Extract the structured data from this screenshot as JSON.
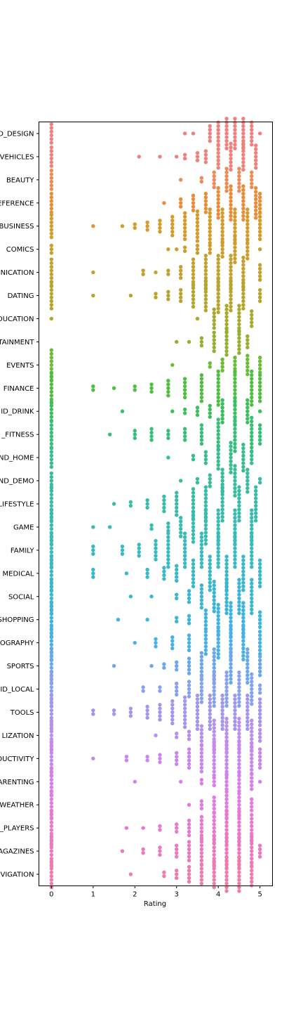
{
  "chart_data": {
    "type": "swarm",
    "orientation": "horizontal",
    "xlabel": "Rating",
    "ylabel": "",
    "xlim": [
      -0.3,
      5.3
    ],
    "xticks": [
      0,
      1,
      2,
      3,
      4,
      5
    ],
    "grid": false,
    "legend": "none",
    "categories": [
      {
        "label": "D_DESIGN",
        "color": "#f08080"
      },
      {
        "label": "VEHICLES",
        "color": "#f0807a"
      },
      {
        "label": "BEAUTY",
        "color": "#ef8a55"
      },
      {
        "label": "EFERENCE",
        "color": "#ea8c36"
      },
      {
        "label": "BUSINESS",
        "color": "#d69a2b"
      },
      {
        "label": "COMICS",
        "color": "#cc9e2c"
      },
      {
        "label": "NICATION",
        "color": "#c3a12d"
      },
      {
        "label": "DATING",
        "color": "#b8a42d"
      },
      {
        "label": "DUCATION",
        "color": "#a7aa2f"
      },
      {
        "label": "TAINMENT",
        "color": "#95b02f"
      },
      {
        "label": "EVENTS",
        "color": "#6bbd36"
      },
      {
        "label": "FINANCE",
        "color": "#4fbf42"
      },
      {
        "label": "ID_DRINK",
        "color": "#3bbf5e"
      },
      {
        "label": "_FITNESS",
        "color": "#39be78"
      },
      {
        "label": "ND_HOME",
        "color": "#38bd8d"
      },
      {
        "label": "ND_DEMO",
        "color": "#37bd9c"
      },
      {
        "label": "LIFESTYLE",
        "color": "#37bca7"
      },
      {
        "label": "GAME",
        "color": "#37bbb3"
      },
      {
        "label": "FAMILY",
        "color": "#38babf"
      },
      {
        "label": "MEDICAL",
        "color": "#39b8c9"
      },
      {
        "label": "SOCIAL",
        "color": "#3ab6d3"
      },
      {
        "label": "SHOPPING",
        "color": "#3db3df"
      },
      {
        "label": "OGRAPHY",
        "color": "#4ab0e8"
      },
      {
        "label": "SPORTS",
        "color": "#6aa8ec"
      },
      {
        "label": "ID_LOCAL",
        "color": "#86a2ee"
      },
      {
        "label": "TOOLS",
        "color": "#a396ee"
      },
      {
        "label": "LIZATION",
        "color": "#b790ee"
      },
      {
        "label": "DUCTIVITY",
        "color": "#c886ee"
      },
      {
        "label": "ARENTING",
        "color": "#d87eec"
      },
      {
        "label": "WEATHER",
        "color": "#e17ae1"
      },
      {
        "label": "_PLAYERS",
        "color": "#e878d0"
      },
      {
        "label": "AGAZINES",
        "color": "#ec78bf"
      },
      {
        "label": "VIGATION",
        "color": "#ef7aac"
      }
    ],
    "points": [
      [
        [
          0,
          6
        ],
        [
          3.2,
          1
        ],
        [
          3.4,
          1
        ],
        [
          3.8,
          5
        ],
        [
          4.0,
          7
        ],
        [
          4.2,
          9
        ],
        [
          4.4,
          9
        ],
        [
          4.6,
          9
        ],
        [
          4.8,
          7
        ],
        [
          5.0,
          1
        ]
      ],
      [
        [
          0,
          6
        ],
        [
          2.1,
          1
        ],
        [
          2.6,
          1
        ],
        [
          3.0,
          1
        ],
        [
          3.2,
          2
        ],
        [
          3.5,
          3
        ],
        [
          3.7,
          4
        ],
        [
          4.0,
          7
        ],
        [
          4.3,
          8
        ],
        [
          4.6,
          8
        ],
        [
          4.9,
          7
        ]
      ],
      [
        [
          0,
          6
        ],
        [
          3.1,
          1
        ],
        [
          3.6,
          2
        ],
        [
          3.9,
          5
        ],
        [
          4.2,
          7
        ],
        [
          4.5,
          7
        ],
        [
          4.8,
          5
        ]
      ],
      [
        [
          0,
          6
        ],
        [
          2.7,
          1
        ],
        [
          3.1,
          3
        ],
        [
          3.4,
          5
        ],
        [
          3.7,
          6
        ],
        [
          4.0,
          9
        ],
        [
          4.3,
          10
        ],
        [
          4.6,
          10
        ],
        [
          4.9,
          9
        ],
        [
          5.0,
          6
        ]
      ],
      [
        [
          0,
          7
        ],
        [
          1.0,
          1
        ],
        [
          1.7,
          1
        ],
        [
          2.0,
          2
        ],
        [
          2.3,
          3
        ],
        [
          2.6,
          4
        ],
        [
          2.9,
          6
        ],
        [
          3.2,
          8
        ],
        [
          3.5,
          9
        ],
        [
          3.8,
          10
        ],
        [
          4.1,
          10
        ],
        [
          4.4,
          10
        ],
        [
          4.7,
          10
        ],
        [
          5.0,
          8
        ]
      ],
      [
        [
          0,
          3
        ],
        [
          2.8,
          1
        ],
        [
          3.0,
          1
        ],
        [
          3.2,
          2
        ],
        [
          3.5,
          3
        ],
        [
          3.8,
          3
        ],
        [
          4.1,
          5
        ],
        [
          4.4,
          8
        ],
        [
          4.7,
          6
        ],
        [
          5.0,
          1
        ]
      ],
      [
        [
          0,
          8
        ],
        [
          1.0,
          1
        ],
        [
          2.2,
          2
        ],
        [
          2.5,
          1
        ],
        [
          2.8,
          2
        ],
        [
          3.1,
          4
        ],
        [
          3.4,
          8
        ],
        [
          3.7,
          10
        ],
        [
          4.0,
          10
        ],
        [
          4.3,
          10
        ],
        [
          4.6,
          9
        ],
        [
          5.0,
          5
        ]
      ],
      [
        [
          0,
          8
        ],
        [
          1.0,
          1
        ],
        [
          1.9,
          1
        ],
        [
          2.5,
          2
        ],
        [
          2.8,
          3
        ],
        [
          3.1,
          4
        ],
        [
          3.4,
          7
        ],
        [
          3.7,
          9
        ],
        [
          4.0,
          10
        ],
        [
          4.3,
          9
        ],
        [
          4.6,
          8
        ],
        [
          5.0,
          4
        ]
      ],
      [
        [
          0,
          1
        ],
        [
          3.5,
          1
        ],
        [
          3.9,
          6
        ],
        [
          4.2,
          8
        ],
        [
          4.5,
          8
        ],
        [
          4.8,
          5
        ]
      ],
      [
        [
          3.0,
          1
        ],
        [
          3.3,
          1
        ],
        [
          3.6,
          3
        ],
        [
          3.9,
          6
        ],
        [
          4.2,
          8
        ],
        [
          4.5,
          7
        ],
        [
          4.7,
          4
        ]
      ],
      [
        [
          0,
          9
        ],
        [
          2.9,
          1
        ],
        [
          3.8,
          2
        ],
        [
          4.1,
          4
        ],
        [
          4.4,
          5
        ],
        [
          4.7,
          6
        ],
        [
          5.0,
          5
        ]
      ],
      [
        [
          0,
          9
        ],
        [
          1.0,
          2
        ],
        [
          1.5,
          1
        ],
        [
          2.0,
          2
        ],
        [
          2.4,
          3
        ],
        [
          2.8,
          5
        ],
        [
          3.2,
          6
        ],
        [
          3.6,
          8
        ],
        [
          4.0,
          10
        ],
        [
          4.4,
          10
        ],
        [
          4.8,
          10
        ],
        [
          5.0,
          8
        ]
      ],
      [
        [
          0,
          6
        ],
        [
          1.7,
          1
        ],
        [
          2.9,
          1
        ],
        [
          3.2,
          2
        ],
        [
          3.5,
          3
        ],
        [
          3.8,
          4
        ],
        [
          4.1,
          7
        ],
        [
          4.4,
          8
        ],
        [
          4.7,
          7
        ],
        [
          5.0,
          1
        ]
      ],
      [
        [
          0,
          8
        ],
        [
          1.4,
          1
        ],
        [
          2.0,
          3
        ],
        [
          2.4,
          4
        ],
        [
          2.8,
          3
        ],
        [
          3.2,
          4
        ],
        [
          3.6,
          6
        ],
        [
          4.0,
          9
        ],
        [
          4.4,
          10
        ],
        [
          4.8,
          10
        ],
        [
          5.0,
          6
        ]
      ],
      [
        [
          0,
          6
        ],
        [
          2.8,
          1
        ],
        [
          3.4,
          2
        ],
        [
          3.7,
          4
        ],
        [
          4.0,
          7
        ],
        [
          4.3,
          9
        ],
        [
          4.6,
          8
        ],
        [
          4.8,
          4
        ]
      ],
      [
        [
          0,
          5
        ],
        [
          3.1,
          1
        ],
        [
          3.5,
          2
        ],
        [
          3.8,
          4
        ],
        [
          4.1,
          7
        ],
        [
          4.4,
          9
        ],
        [
          4.7,
          7
        ],
        [
          5.0,
          2
        ]
      ],
      [
        [
          0,
          10
        ],
        [
          1.5,
          1
        ],
        [
          1.9,
          2
        ],
        [
          2.3,
          3
        ],
        [
          2.7,
          5
        ],
        [
          3.0,
          7
        ],
        [
          3.4,
          9
        ],
        [
          3.7,
          10
        ],
        [
          4.1,
          10
        ],
        [
          4.5,
          10
        ],
        [
          4.9,
          10
        ]
      ],
      [
        [
          0,
          10
        ],
        [
          1.0,
          1
        ],
        [
          1.4,
          1
        ],
        [
          2.4,
          2
        ],
        [
          2.8,
          3
        ],
        [
          3.1,
          6
        ],
        [
          3.4,
          9
        ],
        [
          3.7,
          10
        ],
        [
          4.0,
          10
        ],
        [
          4.4,
          10
        ],
        [
          4.8,
          10
        ]
      ],
      [
        [
          0,
          10
        ],
        [
          1.0,
          3
        ],
        [
          1.7,
          3
        ],
        [
          2.1,
          4
        ],
        [
          2.5,
          6
        ],
        [
          2.8,
          10
        ],
        [
          3.2,
          10
        ],
        [
          3.6,
          10
        ],
        [
          4.0,
          10
        ],
        [
          4.4,
          10
        ],
        [
          4.8,
          10
        ]
      ],
      [
        [
          0,
          10
        ],
        [
          1.0,
          3
        ],
        [
          1.8,
          1
        ],
        [
          2.3,
          3
        ],
        [
          2.7,
          4
        ],
        [
          3.0,
          5
        ],
        [
          3.4,
          8
        ],
        [
          3.8,
          10
        ],
        [
          4.2,
          10
        ],
        [
          4.6,
          10
        ],
        [
          5.0,
          8
        ]
      ],
      [
        [
          0,
          10
        ],
        [
          1.9,
          1
        ],
        [
          2.4,
          1
        ],
        [
          3.0,
          2
        ],
        [
          3.3,
          4
        ],
        [
          3.6,
          7
        ],
        [
          3.9,
          9
        ],
        [
          4.2,
          10
        ],
        [
          4.5,
          10
        ],
        [
          4.8,
          10
        ]
      ],
      [
        [
          0,
          10
        ],
        [
          1.6,
          1
        ],
        [
          2.3,
          1
        ],
        [
          3.0,
          2
        ],
        [
          3.3,
          3
        ],
        [
          3.7,
          6
        ],
        [
          4.0,
          9
        ],
        [
          4.3,
          10
        ],
        [
          4.6,
          10
        ],
        [
          5.0,
          5
        ]
      ],
      [
        [
          0,
          10
        ],
        [
          2.0,
          1
        ],
        [
          2.5,
          3
        ],
        [
          2.9,
          4
        ],
        [
          3.3,
          5
        ],
        [
          3.7,
          7
        ],
        [
          4.0,
          9
        ],
        [
          4.3,
          10
        ],
        [
          4.6,
          10
        ],
        [
          5.0,
          7
        ]
      ],
      [
        [
          0,
          10
        ],
        [
          1.5,
          1
        ],
        [
          2.4,
          1
        ],
        [
          2.7,
          2
        ],
        [
          3.0,
          3
        ],
        [
          3.3,
          5
        ],
        [
          3.6,
          8
        ],
        [
          3.9,
          10
        ],
        [
          4.3,
          10
        ],
        [
          4.7,
          10
        ],
        [
          5.0,
          6
        ]
      ],
      [
        [
          0,
          10
        ],
        [
          2.2,
          2
        ],
        [
          2.6,
          2
        ],
        [
          3.0,
          4
        ],
        [
          3.3,
          5
        ],
        [
          3.6,
          8
        ],
        [
          3.9,
          10
        ],
        [
          4.2,
          10
        ],
        [
          4.5,
          10
        ],
        [
          4.8,
          9
        ],
        [
          5.0,
          3
        ]
      ],
      [
        [
          0,
          10
        ],
        [
          1.0,
          2
        ],
        [
          1.5,
          2
        ],
        [
          1.9,
          3
        ],
        [
          2.3,
          4
        ],
        [
          2.6,
          5
        ],
        [
          2.9,
          7
        ],
        [
          3.2,
          9
        ],
        [
          3.5,
          10
        ],
        [
          3.8,
          10
        ],
        [
          4.1,
          10
        ],
        [
          4.4,
          10
        ],
        [
          4.7,
          10
        ],
        [
          5.0,
          8
        ]
      ],
      [
        [
          0,
          9
        ],
        [
          2.5,
          1
        ],
        [
          3.0,
          2
        ],
        [
          3.3,
          3
        ],
        [
          3.6,
          6
        ],
        [
          3.9,
          9
        ],
        [
          4.2,
          10
        ],
        [
          4.5,
          10
        ],
        [
          4.8,
          9
        ],
        [
          5.0,
          4
        ]
      ],
      [
        [
          0,
          10
        ],
        [
          1.0,
          1
        ],
        [
          1.8,
          2
        ],
        [
          2.3,
          2
        ],
        [
          2.6,
          3
        ],
        [
          3.0,
          4
        ],
        [
          3.3,
          6
        ],
        [
          3.6,
          8
        ],
        [
          3.9,
          10
        ],
        [
          4.2,
          10
        ],
        [
          4.5,
          10
        ],
        [
          4.8,
          9
        ],
        [
          5.0,
          6
        ]
      ],
      [
        [
          0,
          8
        ],
        [
          2.0,
          1
        ],
        [
          3.1,
          1
        ],
        [
          3.6,
          2
        ],
        [
          3.9,
          3
        ],
        [
          4.2,
          5
        ],
        [
          4.5,
          6
        ],
        [
          4.8,
          5
        ],
        [
          5.0,
          1
        ]
      ],
      [
        [
          0,
          8
        ],
        [
          3.3,
          1
        ],
        [
          3.6,
          3
        ],
        [
          3.9,
          5
        ],
        [
          4.2,
          8
        ],
        [
          4.5,
          7
        ],
        [
          4.8,
          4
        ]
      ],
      [
        [
          0,
          10
        ],
        [
          1.8,
          1
        ],
        [
          2.2,
          1
        ],
        [
          2.6,
          2
        ],
        [
          3.0,
          3
        ],
        [
          3.3,
          5
        ],
        [
          3.6,
          7
        ],
        [
          3.9,
          9
        ],
        [
          4.2,
          10
        ],
        [
          4.5,
          10
        ],
        [
          4.8,
          8
        ]
      ],
      [
        [
          0,
          9
        ],
        [
          1.7,
          1
        ],
        [
          2.2,
          2
        ],
        [
          2.6,
          3
        ],
        [
          3.0,
          4
        ],
        [
          3.3,
          6
        ],
        [
          3.6,
          8
        ],
        [
          3.9,
          9
        ],
        [
          4.2,
          10
        ],
        [
          4.5,
          10
        ],
        [
          4.8,
          9
        ],
        [
          5.0,
          4
        ]
      ],
      [
        [
          0,
          8
        ],
        [
          1.9,
          1
        ],
        [
          2.7,
          2
        ],
        [
          3.0,
          3
        ],
        [
          3.3,
          5
        ],
        [
          3.6,
          6
        ],
        [
          3.9,
          8
        ],
        [
          4.2,
          10
        ],
        [
          4.5,
          10
        ],
        [
          4.8,
          7
        ]
      ]
    ]
  }
}
